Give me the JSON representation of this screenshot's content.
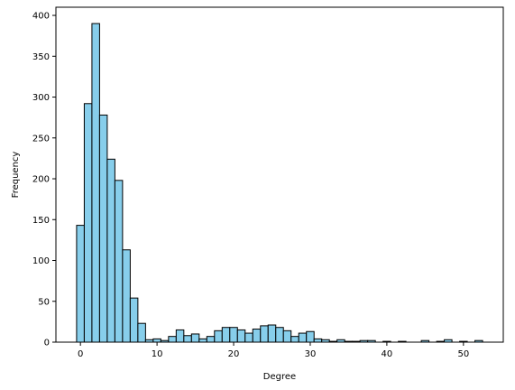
{
  "chart_data": {
    "type": "histogram",
    "title": "",
    "xlabel": "Degree",
    "ylabel": "Frequency",
    "xlim": [
      -3.2,
      55.2
    ],
    "ylim": [
      0,
      410
    ],
    "bin_width": 1,
    "bins": [
      {
        "x": 0,
        "y": 143
      },
      {
        "x": 1,
        "y": 292
      },
      {
        "x": 2,
        "y": 390
      },
      {
        "x": 3,
        "y": 278
      },
      {
        "x": 4,
        "y": 224
      },
      {
        "x": 5,
        "y": 198
      },
      {
        "x": 6,
        "y": 113
      },
      {
        "x": 7,
        "y": 54
      },
      {
        "x": 8,
        "y": 23
      },
      {
        "x": 9,
        "y": 3
      },
      {
        "x": 10,
        "y": 4
      },
      {
        "x": 11,
        "y": 2
      },
      {
        "x": 12,
        "y": 7
      },
      {
        "x": 13,
        "y": 15
      },
      {
        "x": 14,
        "y": 8
      },
      {
        "x": 15,
        "y": 10
      },
      {
        "x": 16,
        "y": 4
      },
      {
        "x": 17,
        "y": 7
      },
      {
        "x": 18,
        "y": 14
      },
      {
        "x": 19,
        "y": 18
      },
      {
        "x": 20,
        "y": 18
      },
      {
        "x": 21,
        "y": 15
      },
      {
        "x": 22,
        "y": 11
      },
      {
        "x": 23,
        "y": 16
      },
      {
        "x": 24,
        "y": 20
      },
      {
        "x": 25,
        "y": 21
      },
      {
        "x": 26,
        "y": 18
      },
      {
        "x": 27,
        "y": 14
      },
      {
        "x": 28,
        "y": 7
      },
      {
        "x": 29,
        "y": 11
      },
      {
        "x": 30,
        "y": 13
      },
      {
        "x": 31,
        "y": 4
      },
      {
        "x": 32,
        "y": 3
      },
      {
        "x": 33,
        "y": 1
      },
      {
        "x": 34,
        "y": 3
      },
      {
        "x": 35,
        "y": 1
      },
      {
        "x": 36,
        "y": 1
      },
      {
        "x": 37,
        "y": 2
      },
      {
        "x": 38,
        "y": 2
      },
      {
        "x": 40,
        "y": 1
      },
      {
        "x": 42,
        "y": 1
      },
      {
        "x": 45,
        "y": 2
      },
      {
        "x": 47,
        "y": 1
      },
      {
        "x": 48,
        "y": 3
      },
      {
        "x": 50,
        "y": 1
      },
      {
        "x": 52,
        "y": 2
      }
    ],
    "x_ticks": [
      0,
      10,
      20,
      30,
      40,
      50
    ],
    "y_ticks": [
      0,
      50,
      100,
      150,
      200,
      250,
      300,
      350,
      400
    ],
    "grid": false,
    "legend": "none",
    "colors": {
      "bar_fill": "#87ceeb",
      "bar_edge": "#000000",
      "axis": "#000000"
    }
  }
}
